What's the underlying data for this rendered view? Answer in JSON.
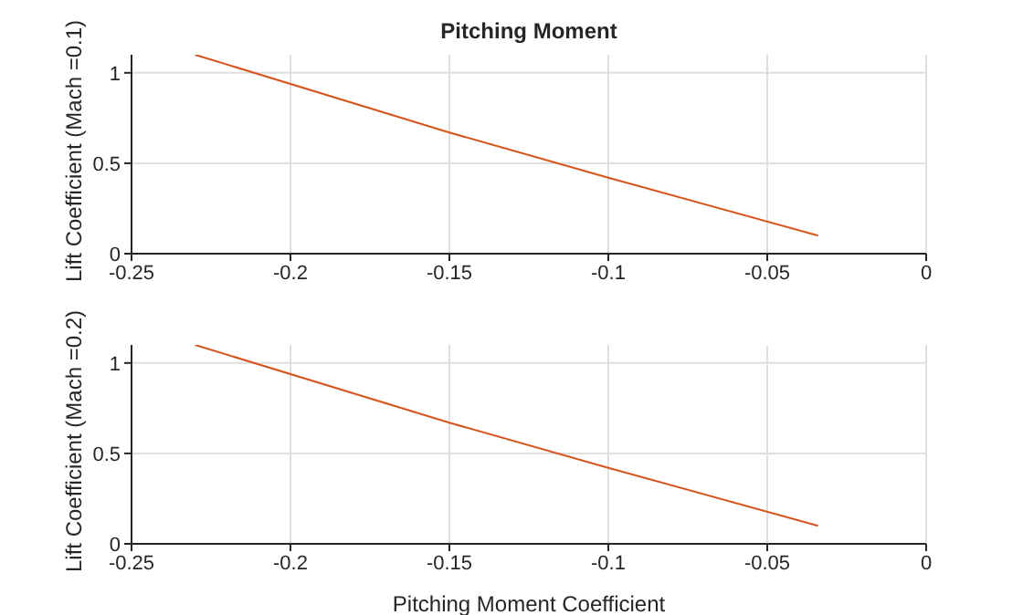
{
  "chart_data": [
    {
      "type": "line",
      "title": "Pitching Moment",
      "ylabel": "Lift Coefficient (Mach =0.1)",
      "x": [
        -0.23,
        -0.15,
        -0.1,
        -0.034
      ],
      "series": [
        {
          "color": "#d95319",
          "values": [
            1.1,
            0.67,
            0.42,
            0.1
          ]
        }
      ],
      "xlim": [
        -0.25,
        0
      ],
      "xticks": [
        -0.25,
        -0.2,
        -0.15,
        -0.1,
        -0.05,
        0
      ],
      "ylim": [
        0,
        1.1
      ],
      "yticks": [
        0,
        0.5,
        1
      ],
      "grid": true
    },
    {
      "type": "line",
      "xlabel": "Pitching Moment Coefficient",
      "ylabel": "Lift Coefficient (Mach =0.2)",
      "x": [
        -0.23,
        -0.15,
        -0.1,
        -0.034
      ],
      "series": [
        {
          "color": "#d95319",
          "values": [
            1.1,
            0.67,
            0.42,
            0.1
          ]
        }
      ],
      "xlim": [
        -0.25,
        0
      ],
      "xticks": [
        -0.25,
        -0.2,
        -0.15,
        -0.1,
        -0.05,
        0
      ],
      "ylim": [
        0,
        1.1
      ],
      "yticks": [
        0,
        0.5,
        1
      ],
      "grid": true
    }
  ]
}
